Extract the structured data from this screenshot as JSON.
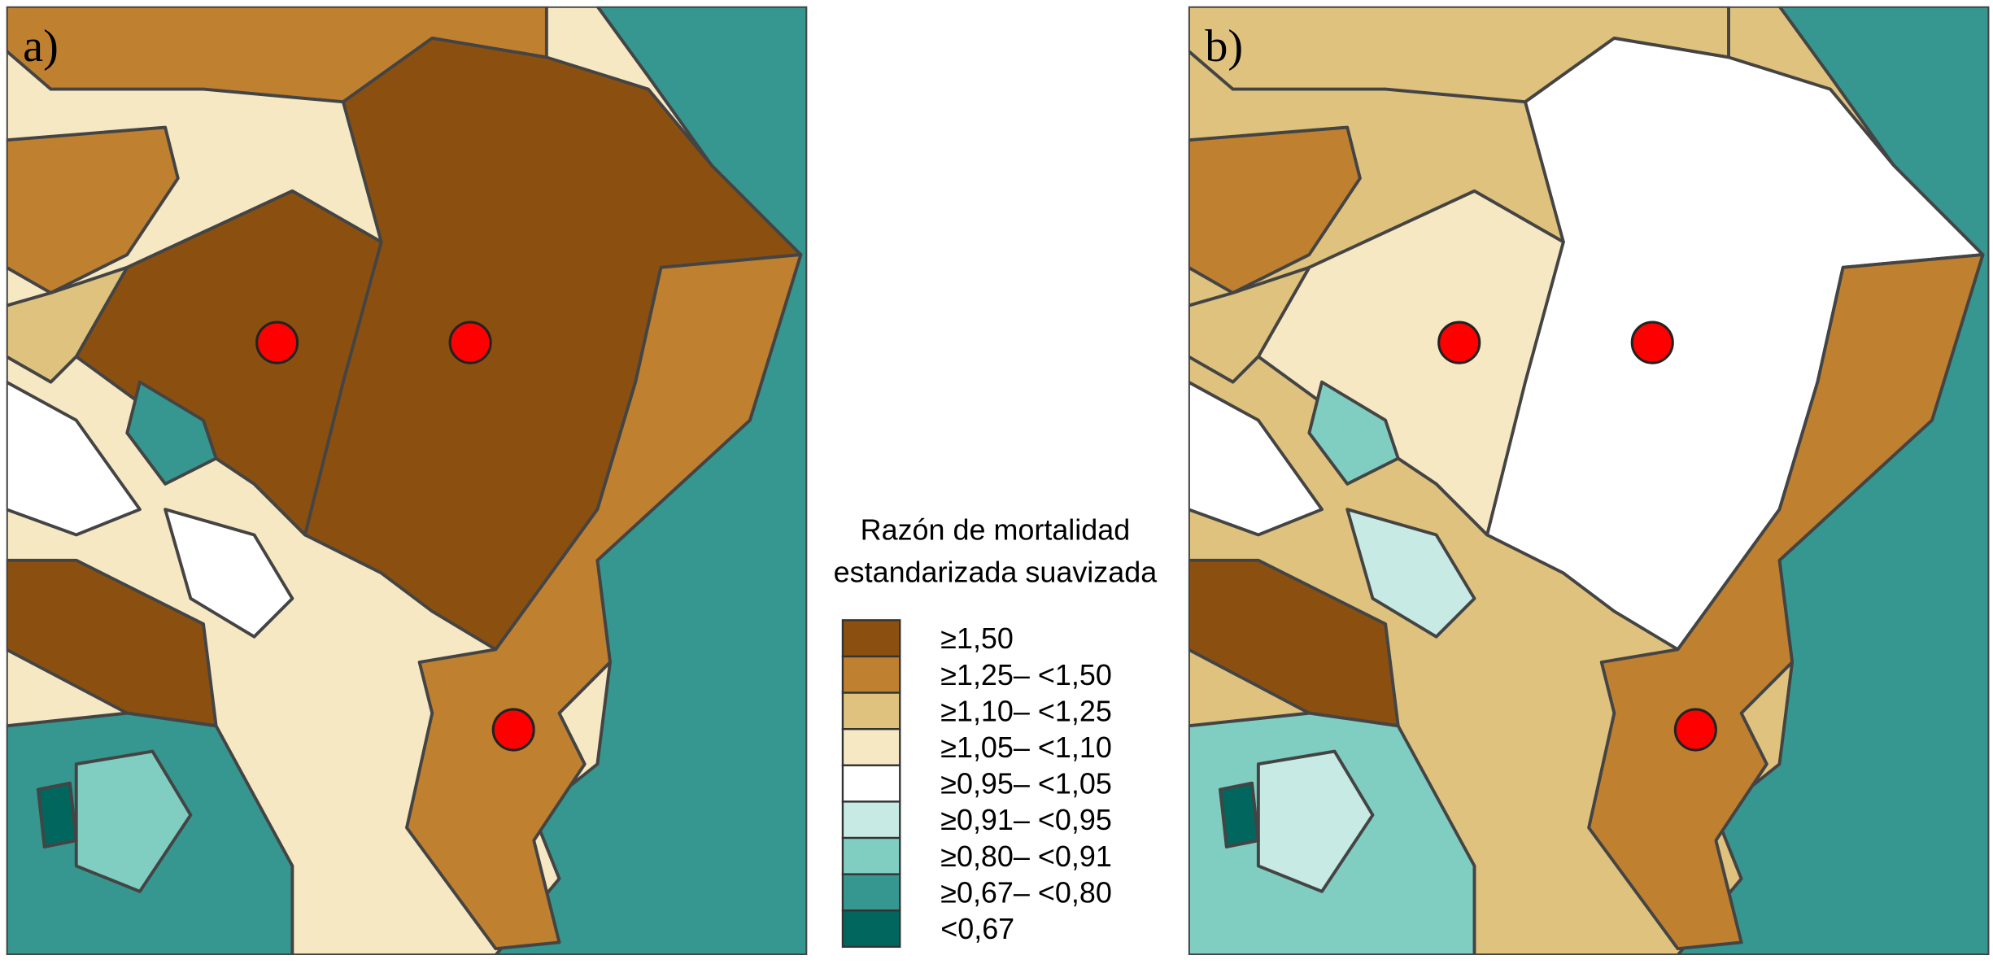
{
  "panels": [
    {
      "label": "a)"
    },
    {
      "label": "b)"
    }
  ],
  "legend": {
    "title": [
      "Razón de mortalidad",
      "estandarizada suavizada"
    ],
    "items": [
      {
        "label": "≥1,50",
        "color": "#8B5010"
      },
      {
        "label": "≥1,25– <1,50",
        "color": "#BF8030"
      },
      {
        "label": "≥1,10– <1,25",
        "color": "#DFC27D"
      },
      {
        "label": "≥1,05– <1,10",
        "color": "#F6E8C3"
      },
      {
        "label": "≥0,95– <1,05",
        "color": "#FFFFFF"
      },
      {
        "label": "≥0,91– <0,95",
        "color": "#C7EAE5"
      },
      {
        "label": "≥0,80– <0,91",
        "color": "#80CDC1"
      },
      {
        "label": "≥0,67– <0,80",
        "color": "#35978F"
      },
      {
        "label": "<0,67",
        "color": "#01665E"
      }
    ]
  }
}
